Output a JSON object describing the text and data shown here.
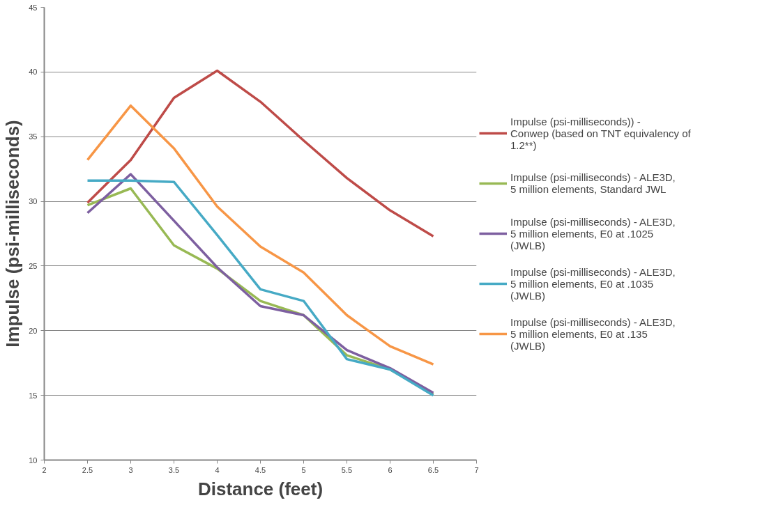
{
  "chart_data": {
    "type": "line",
    "xlabel": "Distance (feet)",
    "ylabel": "Impulse (psi-milliseconds)",
    "x": [
      2.5,
      3,
      3.5,
      4,
      4.5,
      5,
      5.5,
      6,
      6.5
    ],
    "series": [
      {
        "name": "Impulse (psi-milliseconds)) - Conwep (based on TNT equivalency of 1.2**)",
        "color": "#be4b48",
        "values": [
          29.9,
          33.2,
          38.0,
          40.1,
          37.7,
          34.7,
          31.8,
          29.3,
          27.3
        ]
      },
      {
        "name": "Impulse (psi-milliseconds) - ALE3D, 5 million elements, Standard JWL",
        "color": "#98b954",
        "values": [
          29.7,
          31.0,
          26.6,
          24.8,
          22.3,
          21.2,
          18.1,
          17.0,
          15.1
        ]
      },
      {
        "name": "Impulse (psi-milliseconds) - ALE3D, 5 million elements, E0 at .1025 (JWLB)",
        "color": "#7d5fa0",
        "values": [
          29.1,
          32.1,
          28.5,
          24.9,
          21.9,
          21.2,
          18.5,
          17.1,
          15.2
        ]
      },
      {
        "name": "Impulse (psi-milliseconds) - ALE3D, 5 million elements, E0 at .1035 (JWLB)",
        "color": "#46aac5",
        "values": [
          31.6,
          31.6,
          31.5,
          27.4,
          23.2,
          22.3,
          17.8,
          17.0,
          15.0
        ]
      },
      {
        "name": "Impulse (psi-milliseconds) - ALE3D, 5 million elements, E0 at .135 (JWLB)",
        "color": "#f79646",
        "values": [
          33.2,
          37.4,
          34.1,
          29.6,
          26.5,
          24.5,
          21.2,
          18.8,
          17.4
        ]
      }
    ],
    "xlim": [
      2,
      7
    ],
    "xticks": [
      2,
      2.5,
      3,
      3.5,
      4,
      4.5,
      5,
      5.5,
      6,
      6.5,
      7
    ],
    "ylim": [
      10,
      45
    ],
    "yticks": [
      10,
      15,
      20,
      25,
      30,
      35,
      40,
      45
    ],
    "grid": "y",
    "legend": "right",
    "line_style": "solid",
    "marker": "none"
  }
}
